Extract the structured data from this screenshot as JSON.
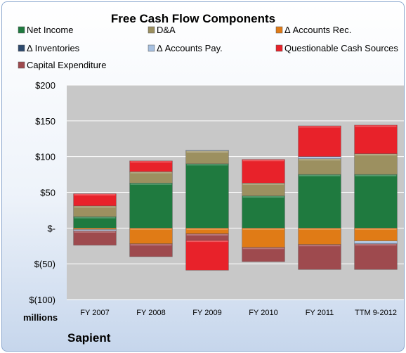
{
  "chart_data": {
    "type": "bar",
    "stacked": true,
    "title": "Free Cash Flow Components",
    "units": "millions",
    "company": "Sapient",
    "categories": [
      "FY 2007",
      "FY 2008",
      "FY 2009",
      "FY 2010",
      "FY 2011",
      "TTM 9-2012"
    ],
    "ylim": [
      -100,
      200
    ],
    "yticks": [
      200,
      150,
      100,
      50,
      0,
      -50,
      -100
    ],
    "ytick_labels": [
      "$200",
      "$150",
      "$100",
      "$50",
      "$-",
      "$(50)",
      "$(100)"
    ],
    "grid": true,
    "legend_position": "top",
    "series": [
      {
        "name": "Net Income",
        "color": "#1f7a3f",
        "values": [
          16,
          63,
          90,
          45,
          75,
          75
        ]
      },
      {
        "name": "D&A",
        "color": "#9c9060",
        "values": [
          15,
          16,
          18,
          18,
          22,
          29
        ]
      },
      {
        "name": "Δ Accounts Rec.",
        "color": "#e07b16",
        "values": [
          -2,
          -22,
          -8,
          -27,
          -23,
          -18
        ]
      },
      {
        "name": "Δ Inventories",
        "color": "#2e4a6e",
        "values": [
          0,
          0,
          0,
          0,
          0,
          0
        ]
      },
      {
        "name": "Δ Accounts Pay.",
        "color": "#a7c0e0",
        "values": [
          -2,
          0,
          1,
          0,
          3,
          -4
        ]
      },
      {
        "name": "Questionable Cash Sources",
        "color": "#e8222a",
        "values": [
          17,
          15,
          0,
          33,
          43,
          40
        ]
      },
      {
        "name": "Capital Expenditure",
        "color": "#9e4a4e",
        "values": [
          -20,
          -18,
          -9,
          -20,
          -35,
          -36
        ]
      }
    ],
    "extra_negative": [
      {
        "series": "Questionable Cash Sources",
        "values": [
          0,
          0,
          -42,
          0,
          0,
          0
        ]
      }
    ]
  }
}
